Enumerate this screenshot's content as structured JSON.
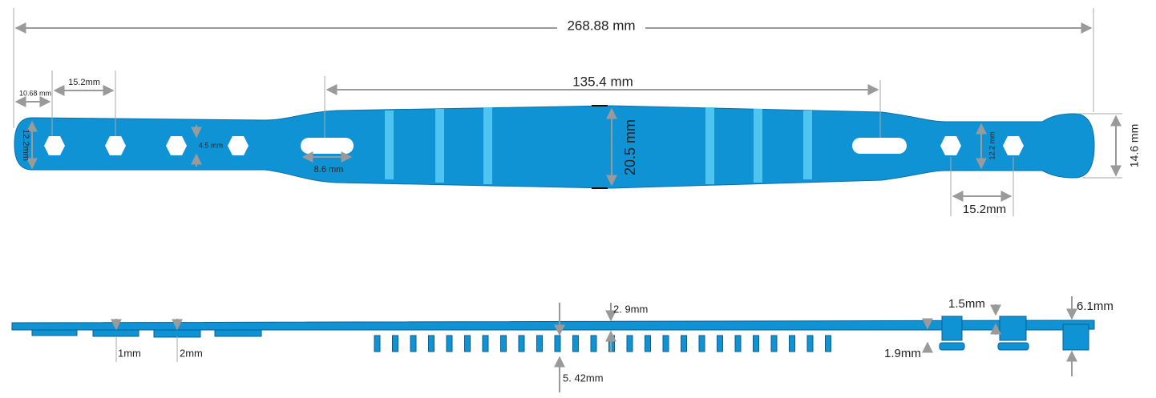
{
  "top_view": {
    "dimensions": [
      "268.88 mm",
      "135.4 mm",
      "10.68 mm",
      "15.2mm",
      "12.2mm",
      "4.5 mm",
      "8.6 mm",
      "20.5 mm",
      "12.2 mm",
      "15.2mm",
      "14.6 mm"
    ]
  },
  "side_view": {
    "dimensions": [
      "2. 9mm",
      "5. 42mm",
      "1mm",
      "2mm",
      "1.5mm",
      "1.9mm",
      "6.1mm"
    ]
  }
}
